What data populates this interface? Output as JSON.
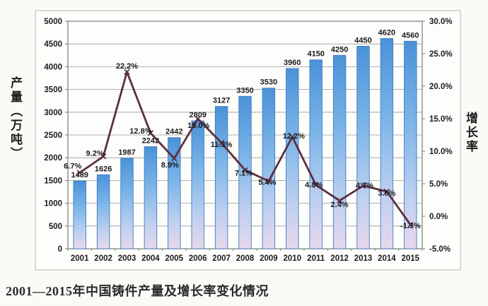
{
  "caption": "2001—2015年中国铸件产量及增长率变化情况",
  "axes": {
    "left_title": "产量（万吨）",
    "right_title": "增长率"
  },
  "chart_data": {
    "type": "bar+line",
    "categories": [
      "2001",
      "2002",
      "2003",
      "2004",
      "2005",
      "2006",
      "2007",
      "2008",
      "2009",
      "2010",
      "2011",
      "2012",
      "2013",
      "2014",
      "2015"
    ],
    "series": [
      {
        "name": "产量(万吨)",
        "type": "bar",
        "values": [
          1489,
          1626,
          1987,
          2242,
          2442,
          2809,
          3127,
          3350,
          3530,
          3960,
          4150,
          4250,
          4450,
          4620,
          4560
        ],
        "value_labels": [
          "1489",
          "1626",
          "1987",
          "2242",
          "2442",
          "2809",
          "3127",
          "3350",
          "3530",
          "3960",
          "4150",
          "4250",
          "4450",
          "4620",
          "4560"
        ]
      },
      {
        "name": "增长率",
        "type": "line",
        "values": [
          6.7,
          9.2,
          22.2,
          12.8,
          8.9,
          15.0,
          11.3,
          7.1,
          5.4,
          12.2,
          4.8,
          2.4,
          4.7,
          3.8,
          -1.3
        ],
        "value_labels": [
          "6.7%",
          "9.2%",
          "22.2%",
          "12.8%",
          "8.9%",
          "15.0%",
          "11.3%",
          "7.1%",
          "5.4%",
          "12.2%",
          "4.8%",
          "2.4%",
          "4.7%",
          "3.8%",
          "-1.3%"
        ],
        "label_offsets": [
          [
            -10,
            -10
          ],
          [
            -12,
            -5
          ],
          [
            0,
            -9
          ],
          [
            -14,
            -3
          ],
          [
            -6,
            9
          ],
          [
            1,
            9
          ],
          [
            0,
            2
          ],
          [
            -2,
            4
          ],
          [
            -2,
            1
          ],
          [
            2,
            -2
          ],
          [
            -3,
            -1
          ],
          [
            0,
            5
          ],
          [
            2,
            -1
          ],
          [
            0,
            2
          ],
          [
            0,
            1
          ]
        ]
      }
    ],
    "left_axis": {
      "min": 0,
      "max": 5000,
      "step": 500,
      "ticks": [
        "5000",
        "4500",
        "4000",
        "3500",
        "3000",
        "2500",
        "2000",
        "1500",
        "1000",
        "500",
        "0"
      ]
    },
    "right_axis": {
      "min": -5,
      "max": 30,
      "step": 5,
      "ticks": [
        "30.0%",
        "25.0%",
        "20.0%",
        "15.0%",
        "10.0%",
        "5.0%",
        "0.0%",
        "-5.0%"
      ]
    },
    "legend": "none",
    "grid": true,
    "colors": {
      "bar_top": "#4b92d8",
      "bar_mid": "#7ab4e8",
      "bar_low": "#bdcff0",
      "bar_bottom": "#e7d8ec",
      "bar_stroke": "#3e7cc0",
      "line": "#5c2f42",
      "grid": "#9a9a9a",
      "plot_border": "#7a7a7a",
      "outer_border": "#b9b6b0",
      "panel_bg": "#fdfdfb",
      "label_text": "#1b1b1b"
    }
  }
}
